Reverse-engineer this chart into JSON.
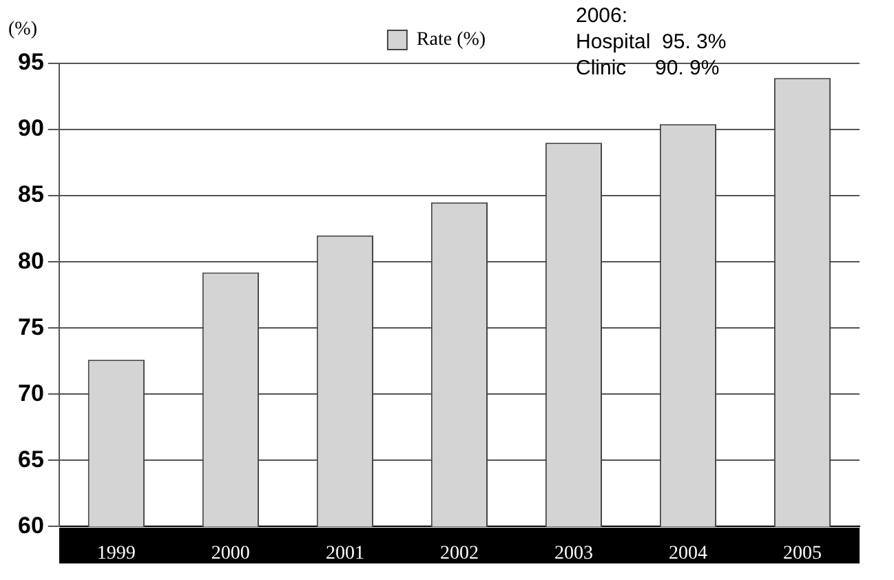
{
  "chart_data": {
    "type": "bar",
    "ylabel": "(%)",
    "categories": [
      "1999",
      "2000",
      "2001",
      "2002",
      "2003",
      "2004",
      "2005"
    ],
    "series": [
      {
        "name": "Rate (%)",
        "color": "#d4d4d4",
        "values": [
          72.6,
          79.2,
          82.0,
          84.5,
          89.0,
          90.4,
          93.9
        ]
      }
    ],
    "ylim": [
      60,
      95
    ],
    "yticks": [
      60,
      65,
      70,
      75,
      80,
      85,
      90,
      95
    ],
    "grid": "y",
    "legend": "top",
    "annotations": [
      "2006:",
      "Hospital  95. 3%",
      "Clinic     90. 9%"
    ]
  }
}
